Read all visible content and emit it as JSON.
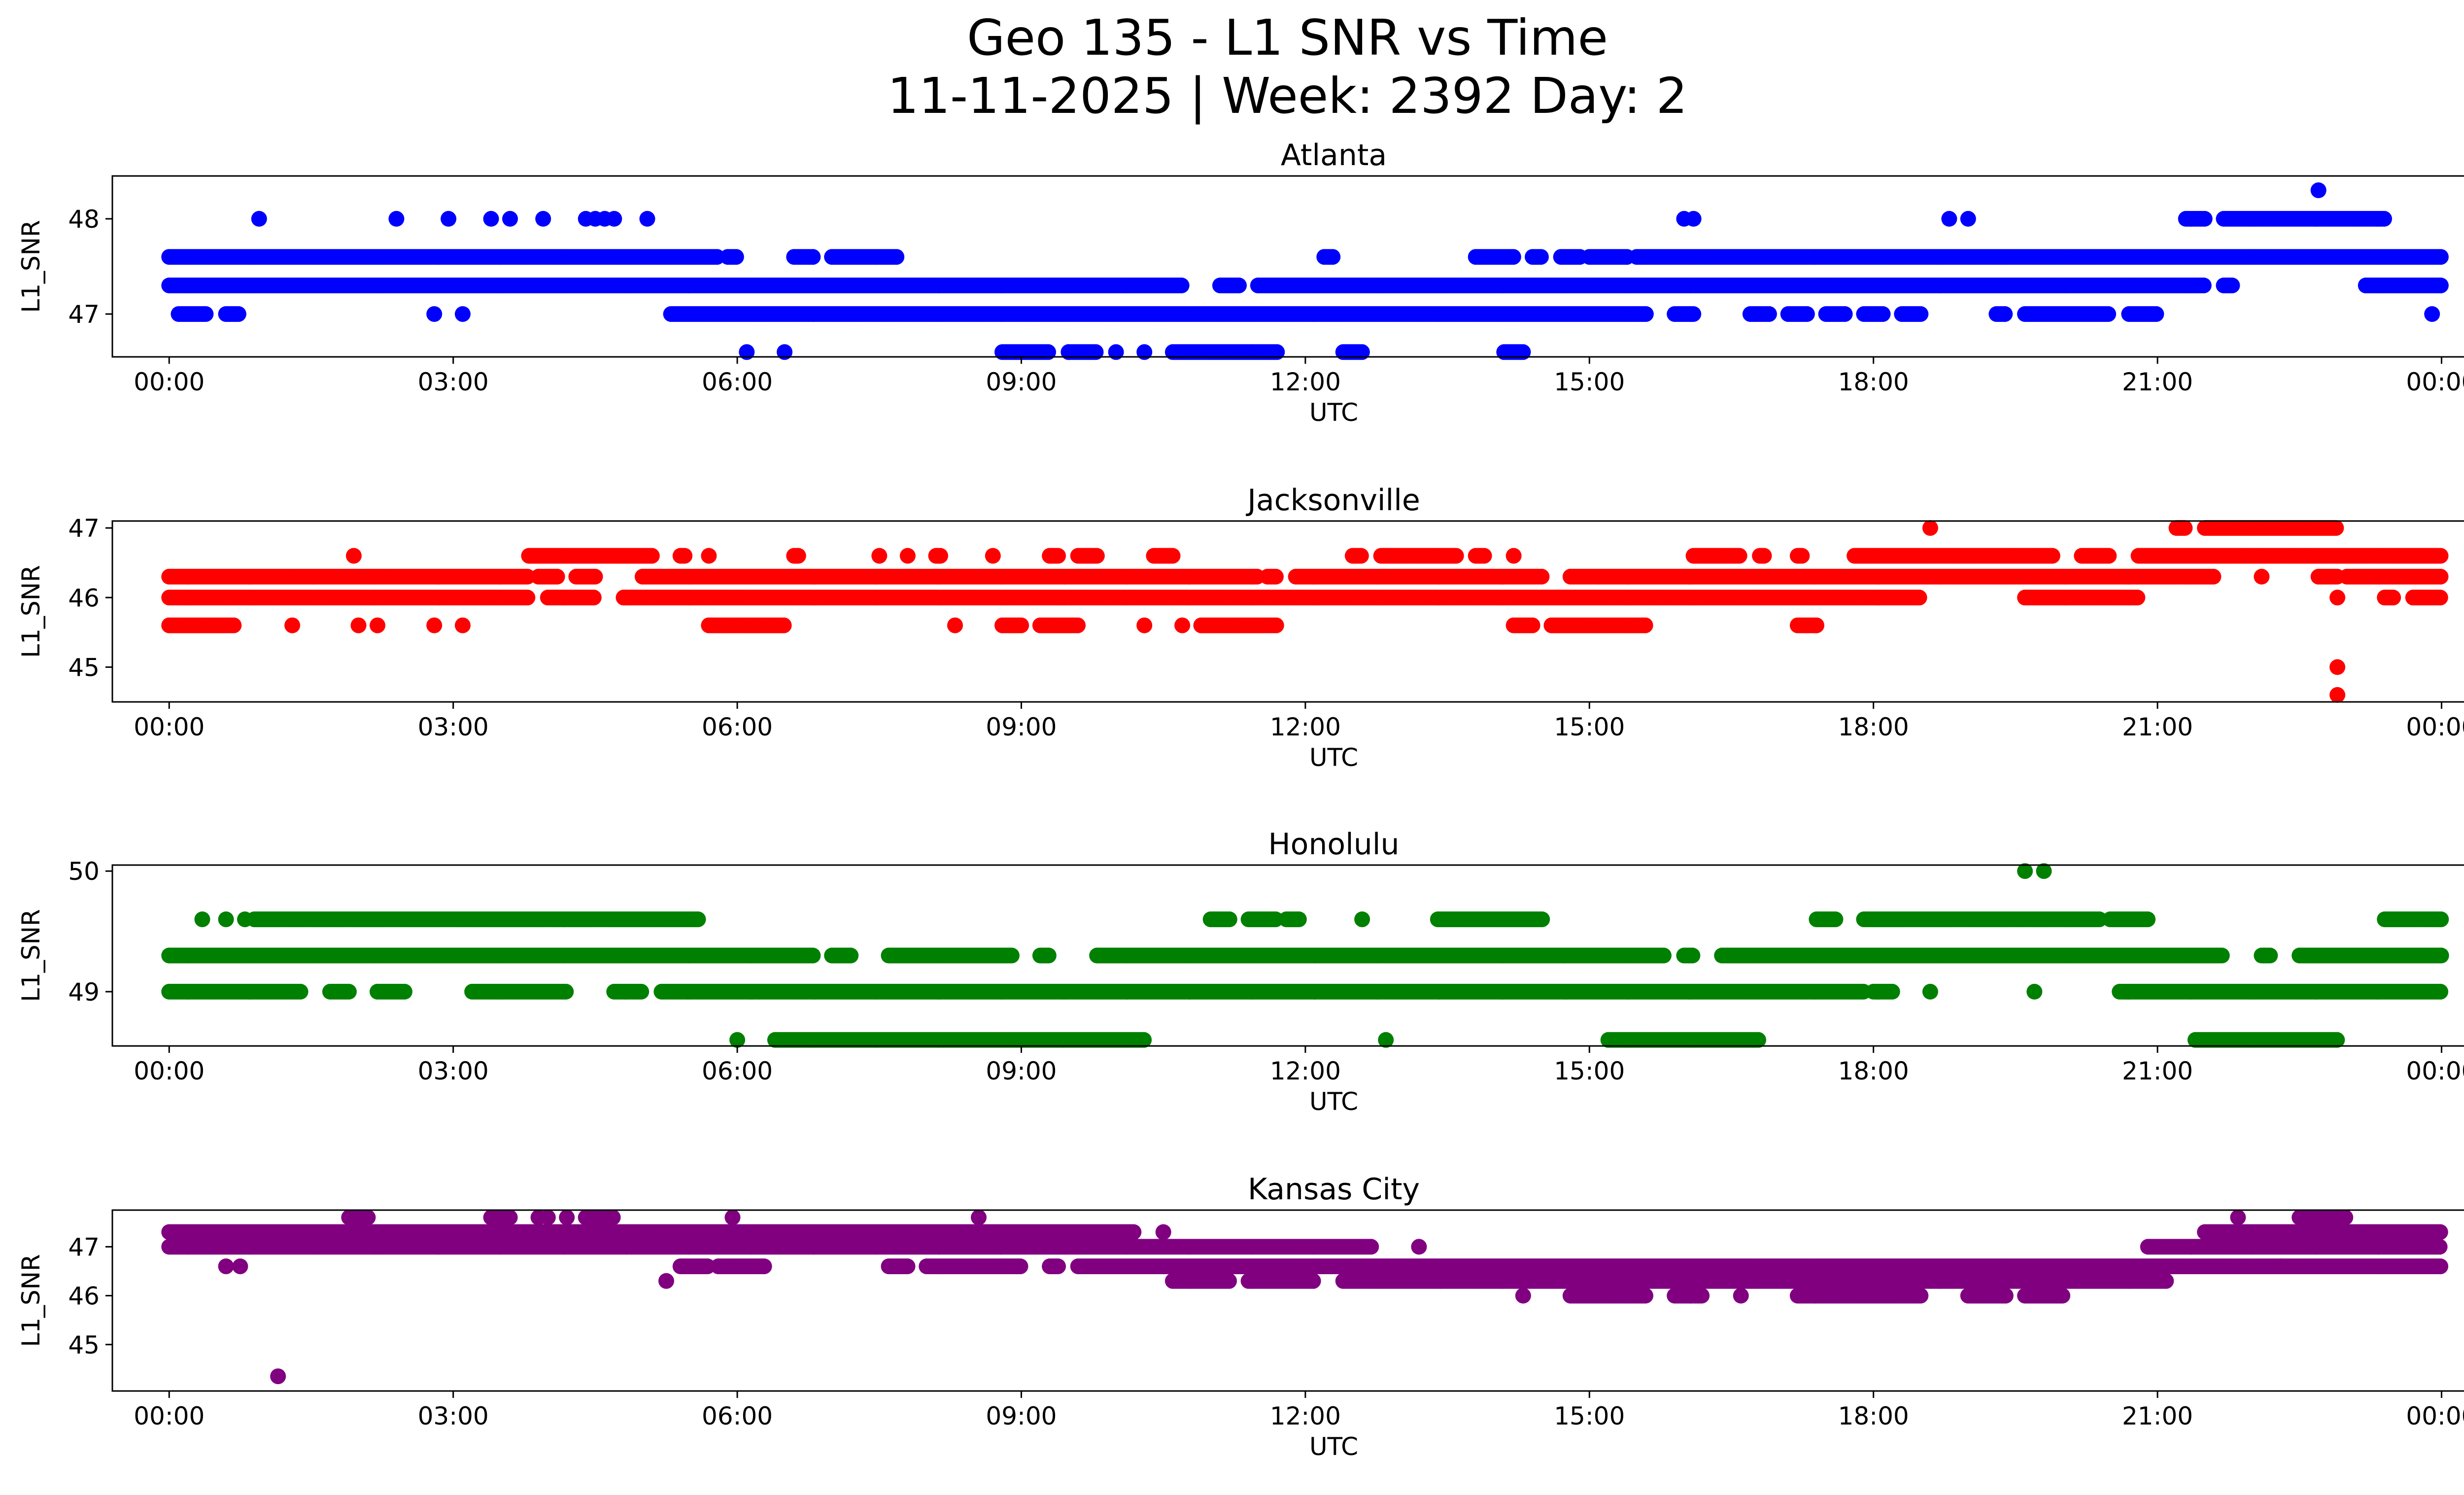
{
  "figure": {
    "title_line1": "Geo 135 - L1 SNR vs Time",
    "title_line2": "11-11-2025 | Week: 2392 Day: 2"
  },
  "chart_data": [
    {
      "type": "scatter",
      "title": "Atlanta",
      "xlabel": "UTC",
      "ylabel": "L1_SNR",
      "color": "#0000ff",
      "xlim_hours": [
        -0.6,
        25.2
      ],
      "ylim": [
        46.55,
        48.45
      ],
      "x_ticks": [
        0,
        3,
        6,
        9,
        12,
        15,
        18,
        21,
        24
      ],
      "x_tick_labels": [
        "00:00",
        "03:00",
        "06:00",
        "09:00",
        "12:00",
        "15:00",
        "18:00",
        "21:00",
        "00:00"
      ],
      "y_ticks": [
        47,
        48
      ],
      "y_tick_labels": [
        "47",
        "48"
      ],
      "series": [
        {
          "y": 47.6,
          "spans": [
            [
              0,
              5.8
            ],
            [
              5.9,
              6.0
            ],
            [
              6.6,
              6.8
            ],
            [
              7.0,
              7.7
            ],
            [
              12.2,
              12.3
            ],
            [
              13.8,
              14.2
            ],
            [
              14.4,
              14.5
            ],
            [
              14.7,
              14.9
            ],
            [
              15.0,
              15.4
            ],
            [
              15.5,
              24.0
            ]
          ]
        },
        {
          "y": 47.3,
          "spans": [
            [
              0,
              10.7
            ],
            [
              11.1,
              11.3
            ],
            [
              11.5,
              21.5
            ],
            [
              21.7,
              21.8
            ],
            [
              23.2,
              24.0
            ]
          ]
        },
        {
          "y": 47.0,
          "spans": [
            [
              0.1,
              0.4
            ],
            [
              0.6,
              0.75
            ],
            [
              5.3,
              15.6
            ],
            [
              15.9,
              16.1
            ],
            [
              16.7,
              16.9
            ],
            [
              17.1,
              17.3
            ],
            [
              17.5,
              17.7
            ],
            [
              17.9,
              18.1
            ],
            [
              18.3,
              18.5
            ],
            [
              19.3,
              19.4
            ],
            [
              19.6,
              20.5
            ],
            [
              20.7,
              21.0
            ]
          ]
        },
        {
          "y": 46.6,
          "spans": [
            [
              8.8,
              9.3
            ],
            [
              9.5,
              9.8
            ],
            [
              10.6,
              11.7
            ],
            [
              12.4,
              12.6
            ],
            [
              14.1,
              14.3
            ]
          ]
        },
        {
          "y": 48.0,
          "spans": [
            [
              21.3,
              21.5
            ],
            [
              21.7,
              23.4
            ]
          ]
        }
      ],
      "points": [
        {
          "x": 0.95,
          "y": 48.0
        },
        {
          "x": 2.4,
          "y": 48.0
        },
        {
          "x": 2.95,
          "y": 48.0
        },
        {
          "x": 3.4,
          "y": 48.0
        },
        {
          "x": 3.6,
          "y": 48.0
        },
        {
          "x": 3.95,
          "y": 48.0
        },
        {
          "x": 4.4,
          "y": 48.0
        },
        {
          "x": 4.5,
          "y": 48.0
        },
        {
          "x": 4.6,
          "y": 48.0
        },
        {
          "x": 4.7,
          "y": 48.0
        },
        {
          "x": 5.05,
          "y": 48.0
        },
        {
          "x": 16.0,
          "y": 48.0
        },
        {
          "x": 16.1,
          "y": 48.0
        },
        {
          "x": 18.8,
          "y": 48.0
        },
        {
          "x": 19.0,
          "y": 48.0
        },
        {
          "x": 22.7,
          "y": 48.3
        },
        {
          "x": 2.8,
          "y": 47.0
        },
        {
          "x": 3.1,
          "y": 47.0
        },
        {
          "x": 6.1,
          "y": 46.6
        },
        {
          "x": 6.5,
          "y": 46.6
        },
        {
          "x": 9.5,
          "y": 46.6
        },
        {
          "x": 10.0,
          "y": 46.6
        },
        {
          "x": 10.3,
          "y": 46.6
        },
        {
          "x": 23.9,
          "y": 47.0
        }
      ]
    },
    {
      "type": "scatter",
      "title": "Jacksonville",
      "xlabel": "UTC",
      "ylabel": "L1_SNR",
      "color": "#ff0000",
      "xlim_hours": [
        -0.6,
        25.2
      ],
      "ylim": [
        44.5,
        47.1
      ],
      "x_ticks": [
        0,
        3,
        6,
        9,
        12,
        15,
        18,
        21,
        24
      ],
      "x_tick_labels": [
        "00:00",
        "03:00",
        "06:00",
        "09:00",
        "12:00",
        "15:00",
        "18:00",
        "21:00",
        "00:00"
      ],
      "y_ticks": [
        45,
        46,
        47
      ],
      "y_tick_labels": [
        "45",
        "46",
        "47"
      ],
      "series": [
        {
          "y": 46.3,
          "spans": [
            [
              0,
              3.8
            ],
            [
              3.9,
              4.1
            ],
            [
              4.3,
              4.5
            ],
            [
              5.0,
              11.5
            ],
            [
              11.6,
              11.7
            ],
            [
              11.9,
              14.5
            ],
            [
              14.8,
              15.1
            ],
            [
              15.1,
              21.6
            ],
            [
              22.7,
              22.9
            ],
            [
              23.0,
              24.0
            ]
          ]
        },
        {
          "y": 46.0,
          "spans": [
            [
              0,
              3.8
            ],
            [
              4.0,
              4.5
            ],
            [
              4.8,
              18.5
            ],
            [
              19.6,
              20.8
            ],
            [
              23.4,
              23.5
            ],
            [
              23.7,
              24.0
            ]
          ]
        },
        {
          "y": 46.6,
          "spans": [
            [
              3.8,
              5.1
            ],
            [
              5.4,
              5.45
            ],
            [
              6.6,
              6.65
            ],
            [
              8.1,
              8.15
            ],
            [
              9.3,
              9.4
            ],
            [
              9.6,
              9.8
            ],
            [
              10.4,
              10.6
            ],
            [
              12.5,
              12.6
            ],
            [
              12.8,
              13.6
            ],
            [
              13.8,
              13.9
            ],
            [
              16.1,
              16.6
            ],
            [
              16.8,
              16.85
            ],
            [
              17.2,
              17.25
            ],
            [
              17.8,
              19.9
            ],
            [
              20.2,
              20.5
            ],
            [
              20.8,
              24.0
            ]
          ]
        },
        {
          "y": 45.6,
          "spans": [
            [
              0,
              0.7
            ],
            [
              5.7,
              6.5
            ],
            [
              8.8,
              9.0
            ],
            [
              9.2,
              9.6
            ],
            [
              10.9,
              11.7
            ],
            [
              14.2,
              14.4
            ],
            [
              14.6,
              15.6
            ],
            [
              17.2,
              17.4
            ]
          ]
        },
        {
          "y": 47.0,
          "spans": [
            [
              21.2,
              21.3
            ],
            [
              21.5,
              22.9
            ]
          ]
        }
      ],
      "points": [
        {
          "x": 1.3,
          "y": 45.6
        },
        {
          "x": 2.0,
          "y": 45.6
        },
        {
          "x": 2.2,
          "y": 45.6
        },
        {
          "x": 2.8,
          "y": 45.6
        },
        {
          "x": 3.1,
          "y": 45.6
        },
        {
          "x": 8.3,
          "y": 45.6
        },
        {
          "x": 10.3,
          "y": 45.6
        },
        {
          "x": 10.7,
          "y": 45.6
        },
        {
          "x": 1.95,
          "y": 46.6
        },
        {
          "x": 5.7,
          "y": 46.6
        },
        {
          "x": 7.5,
          "y": 46.6
        },
        {
          "x": 7.8,
          "y": 46.6
        },
        {
          "x": 8.7,
          "y": 46.6
        },
        {
          "x": 14.2,
          "y": 46.6
        },
        {
          "x": 18.6,
          "y": 47.0
        },
        {
          "x": 22.1,
          "y": 46.3
        },
        {
          "x": 22.9,
          "y": 46.0
        },
        {
          "x": 22.9,
          "y": 45.0
        },
        {
          "x": 22.9,
          "y": 44.6
        }
      ]
    },
    {
      "type": "scatter",
      "title": "Honolulu",
      "xlabel": "UTC",
      "ylabel": "L1_SNR",
      "color": "#008000",
      "xlim_hours": [
        -0.6,
        25.2
      ],
      "ylim": [
        48.55,
        50.05
      ],
      "x_ticks": [
        0,
        3,
        6,
        9,
        12,
        15,
        18,
        21,
        24
      ],
      "x_tick_labels": [
        "00:00",
        "03:00",
        "06:00",
        "09:00",
        "12:00",
        "15:00",
        "18:00",
        "21:00",
        "00:00"
      ],
      "y_ticks": [
        49,
        50
      ],
      "y_tick_labels": [
        "49",
        "50"
      ],
      "series": [
        {
          "y": 49.3,
          "spans": [
            [
              0,
              6.8
            ],
            [
              7.0,
              7.2
            ],
            [
              7.6,
              8.9
            ],
            [
              9.2,
              9.3
            ],
            [
              9.8,
              15.8
            ],
            [
              16.0,
              16.1
            ],
            [
              16.4,
              21.7
            ],
            [
              22.1,
              22.2
            ],
            [
              22.5,
              24.0
            ]
          ]
        },
        {
          "y": 49.0,
          "spans": [
            [
              0,
              1.4
            ],
            [
              1.7,
              1.9
            ],
            [
              2.2,
              2.5
            ],
            [
              3.2,
              4.2
            ],
            [
              4.7,
              5.0
            ],
            [
              5.2,
              17.9
            ],
            [
              18.0,
              18.2
            ],
            [
              20.6,
              24.0
            ]
          ]
        },
        {
          "y": 49.6,
          "spans": [
            [
              0.9,
              5.6
            ],
            [
              11.0,
              11.2
            ],
            [
              11.4,
              11.7
            ],
            [
              11.8,
              11.95
            ],
            [
              13.4,
              14.5
            ],
            [
              17.4,
              17.6
            ],
            [
              17.9,
              20.4
            ],
            [
              20.5,
              20.9
            ],
            [
              23.4,
              24.0
            ]
          ]
        },
        {
          "y": 48.6,
          "spans": [
            [
              6.4,
              10.3
            ],
            [
              15.2,
              16.8
            ],
            [
              21.4,
              22.9
            ]
          ]
        }
      ],
      "points": [
        {
          "x": 0.35,
          "y": 49.6
        },
        {
          "x": 0.6,
          "y": 49.6
        },
        {
          "x": 0.8,
          "y": 49.6
        },
        {
          "x": 12.6,
          "y": 49.6
        },
        {
          "x": 12.85,
          "y": 48.6
        },
        {
          "x": 6.0,
          "y": 48.6
        },
        {
          "x": 18.6,
          "y": 49.0
        },
        {
          "x": 19.7,
          "y": 49.0
        },
        {
          "x": 19.6,
          "y": 50.0
        },
        {
          "x": 19.8,
          "y": 50.0
        }
      ]
    },
    {
      "type": "scatter",
      "title": "Kansas City",
      "xlabel": "UTC",
      "ylabel": "L1_SNR",
      "color": "#800080",
      "xlim_hours": [
        -0.6,
        25.2
      ],
      "ylim": [
        44.05,
        47.75
      ],
      "x_ticks": [
        0,
        3,
        6,
        9,
        12,
        15,
        18,
        21,
        24
      ],
      "x_tick_labels": [
        "00:00",
        "03:00",
        "06:00",
        "09:00",
        "12:00",
        "15:00",
        "18:00",
        "21:00",
        "00:00"
      ],
      "y_ticks": [
        45,
        46,
        47
      ],
      "y_tick_labels": [
        "45",
        "46",
        "47"
      ],
      "series": [
        {
          "y": 47.3,
          "spans": [
            [
              0,
              10.2
            ],
            [
              21.5,
              24.0
            ]
          ]
        },
        {
          "y": 47.0,
          "spans": [
            [
              0,
              12.7
            ],
            [
              20.9,
              24.0
            ]
          ]
        },
        {
          "y": 46.6,
          "spans": [
            [
              5.4,
              5.7
            ],
            [
              5.8,
              6.3
            ],
            [
              7.6,
              7.8
            ],
            [
              8.0,
              9.0
            ],
            [
              9.3,
              9.4
            ],
            [
              9.6,
              24.0
            ]
          ]
        },
        {
          "y": 46.3,
          "spans": [
            [
              10.6,
              11.2
            ],
            [
              11.4,
              12.1
            ],
            [
              12.4,
              21.1
            ]
          ]
        },
        {
          "y": 46.0,
          "spans": [
            [
              14.8,
              15.6
            ],
            [
              15.9,
              16.2
            ],
            [
              17.2,
              18.5
            ],
            [
              19.0,
              19.4
            ],
            [
              19.6,
              20.0
            ]
          ]
        },
        {
          "y": 47.6,
          "spans": [
            [
              1.9,
              2.1
            ],
            [
              3.4,
              3.6
            ],
            [
              4.4,
              4.7
            ],
            [
              22.5,
              23.0
            ]
          ]
        }
      ],
      "points": [
        {
          "x": 0.6,
          "y": 46.6
        },
        {
          "x": 0.75,
          "y": 46.6
        },
        {
          "x": 1.15,
          "y": 44.35
        },
        {
          "x": 5.25,
          "y": 46.3
        },
        {
          "x": 3.9,
          "y": 47.6
        },
        {
          "x": 4.0,
          "y": 47.6
        },
        {
          "x": 4.2,
          "y": 47.6
        },
        {
          "x": 5.95,
          "y": 47.6
        },
        {
          "x": 8.55,
          "y": 47.6
        },
        {
          "x": 10.5,
          "y": 47.3
        },
        {
          "x": 13.2,
          "y": 47.0
        },
        {
          "x": 14.3,
          "y": 46.0
        },
        {
          "x": 16.6,
          "y": 46.0
        },
        {
          "x": 21.85,
          "y": 47.6
        },
        {
          "x": 22.3,
          "y": 46.6
        }
      ]
    }
  ]
}
